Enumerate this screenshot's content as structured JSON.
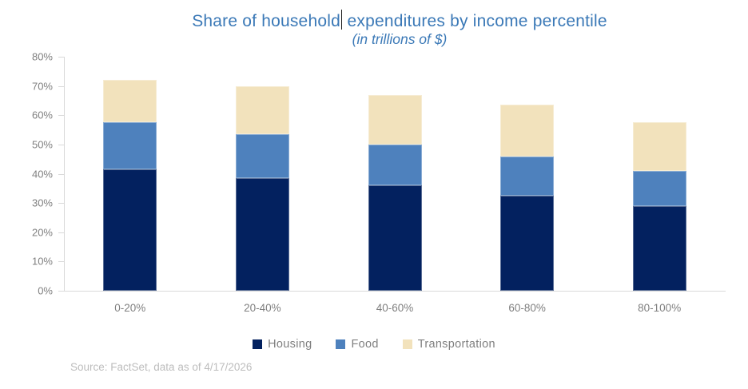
{
  "title": {
    "before_caret": "Share of household",
    "after_caret": " expenditures by income percentile",
    "full": "Share of household expenditures by income percentile",
    "color": "#3B79B7"
  },
  "subtitle": "(in trillions of $)",
  "chart_data": {
    "type": "bar",
    "stacked": true,
    "title": "Share of household expenditures by income percentile",
    "subtitle": "(in trillions of $)",
    "categories": [
      "0-20%",
      "20-40%",
      "40-60%",
      "60-80%",
      "80-100%"
    ],
    "series": [
      {
        "name": "Housing",
        "color": "#03215F",
        "values": [
          41.5,
          38.5,
          36.0,
          32.5,
          29.0
        ]
      },
      {
        "name": "Food",
        "color": "#4E81BD",
        "values": [
          16.0,
          15.0,
          14.0,
          13.5,
          12.0
        ]
      },
      {
        "name": "Transportation",
        "color": "#F2E2BC",
        "values": [
          14.5,
          16.5,
          17.0,
          17.5,
          16.5
        ]
      }
    ],
    "xlabel": "",
    "ylabel": "",
    "ylim": [
      0,
      80
    ],
    "ytick_step": 10,
    "ytick_labels": [
      "0%",
      "10%",
      "20%",
      "30%",
      "40%",
      "50%",
      "60%",
      "70%",
      "80%"
    ],
    "grid": false,
    "legend_position": "bottom",
    "axis_color": "#D9D9D9",
    "tick_label_color": "#7F7F7F"
  },
  "source_note": "Source: FactSet, data as of 4/17/2026"
}
